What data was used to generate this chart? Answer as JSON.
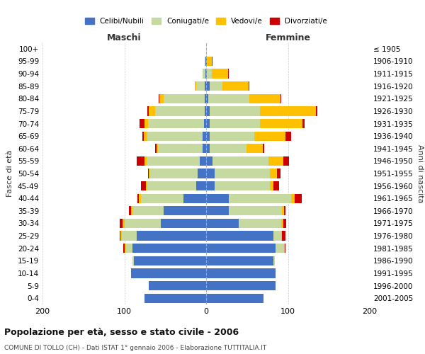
{
  "age_groups": [
    "0-4",
    "5-9",
    "10-14",
    "15-19",
    "20-24",
    "25-29",
    "30-34",
    "35-39",
    "40-44",
    "45-49",
    "50-54",
    "55-59",
    "60-64",
    "65-69",
    "70-74",
    "75-79",
    "80-84",
    "85-89",
    "90-94",
    "95-99",
    "100+"
  ],
  "birth_years": [
    "2001-2005",
    "1996-2000",
    "1991-1995",
    "1986-1990",
    "1981-1985",
    "1976-1980",
    "1971-1975",
    "1966-1970",
    "1961-1965",
    "1956-1960",
    "1951-1955",
    "1946-1950",
    "1941-1945",
    "1936-1940",
    "1931-1935",
    "1926-1930",
    "1921-1925",
    "1916-1920",
    "1911-1915",
    "1906-1910",
    "≤ 1905"
  ],
  "maschi_celibi": [
    75,
    70,
    92,
    88,
    90,
    85,
    55,
    52,
    28,
    12,
    10,
    8,
    4,
    4,
    3,
    2,
    2,
    2,
    1,
    1,
    0
  ],
  "maschi_coniugati": [
    0,
    0,
    0,
    2,
    8,
    18,
    45,
    38,
    52,
    60,
    58,
    65,
    55,
    68,
    68,
    60,
    50,
    10,
    3,
    1,
    0
  ],
  "maschi_vedovi": [
    0,
    0,
    0,
    0,
    2,
    2,
    2,
    2,
    2,
    2,
    2,
    2,
    2,
    4,
    4,
    8,
    5,
    2,
    0,
    0,
    0
  ],
  "maschi_divorziati": [
    0,
    0,
    0,
    0,
    1,
    1,
    4,
    2,
    2,
    6,
    1,
    10,
    1,
    2,
    6,
    2,
    1,
    0,
    0,
    0,
    0
  ],
  "femmine_nubili": [
    70,
    85,
    85,
    82,
    85,
    82,
    40,
    28,
    28,
    10,
    10,
    8,
    4,
    4,
    4,
    4,
    3,
    4,
    1,
    1,
    0
  ],
  "femmine_coniugate": [
    0,
    0,
    0,
    2,
    10,
    10,
    52,
    65,
    76,
    68,
    68,
    68,
    45,
    55,
    62,
    62,
    50,
    16,
    6,
    0,
    0
  ],
  "femmine_vedove": [
    0,
    0,
    0,
    0,
    1,
    1,
    2,
    2,
    4,
    4,
    9,
    18,
    20,
    38,
    52,
    68,
    38,
    32,
    20,
    6,
    0
  ],
  "femmine_divorziate": [
    0,
    0,
    0,
    0,
    1,
    4,
    4,
    2,
    9,
    7,
    4,
    7,
    2,
    7,
    2,
    2,
    1,
    1,
    1,
    1,
    0
  ],
  "color_celibi": "#4472c4",
  "color_coniugati": "#c5d9a0",
  "color_vedovi": "#ffc000",
  "color_divorziati": "#cc0000",
  "title": "Popolazione per età, sesso e stato civile - 2006",
  "subtitle": "COMUNE DI TOLLO (CH) - Dati ISTAT 1° gennaio 2006 - Elaborazione TUTTITALIA.IT",
  "ylabel_left": "Fasce di età",
  "ylabel_right": "Anni di nascita",
  "label_maschi": "Maschi",
  "label_femmine": "Femmine",
  "legend_labels": [
    "Celibi/Nubili",
    "Coniugati/e",
    "Vedovi/e",
    "Divorziati/e"
  ],
  "xlim": 200,
  "bg_color": "#ffffff",
  "grid_color": "#cccccc"
}
